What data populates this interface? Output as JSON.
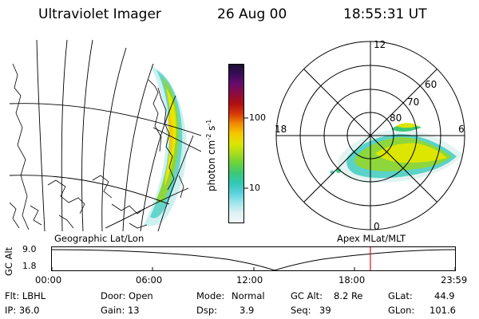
{
  "header": {
    "title": "Ultraviolet Imager",
    "date": "26 Aug 00",
    "time": "18:55:31  UT"
  },
  "colorbar": {
    "label": "photon cm",
    "label_exp1": "-2",
    "label_mid": "s",
    "label_exp2": "-1",
    "ticks": [
      "100",
      "10"
    ],
    "colors": [
      "#1a0f30",
      "#3a0d5a",
      "#6a0b6a",
      "#8e0b3e",
      "#b01010",
      "#d83a0a",
      "#f08c00",
      "#f5c800",
      "#dce600",
      "#a8dc1e",
      "#6ad23c",
      "#3cc878",
      "#32c8b4",
      "#5ad2dc",
      "#9ee6ec",
      "#dcf0f4",
      "#f4f8fa"
    ]
  },
  "geo": {
    "caption": "Geographic Lat/Lon"
  },
  "polar": {
    "caption": "Apex MLat/MLT",
    "mlt_labels": {
      "top": "12",
      "left": "18",
      "right": "6",
      "bottom": "0"
    },
    "lat_labels": [
      "60",
      "70",
      "80"
    ]
  },
  "altstrip": {
    "axis_label": "GC Alt",
    "ymax": "9.0",
    "ymin": "1.8",
    "xticks": [
      "00:00",
      "06:00",
      "12:00",
      "18:00",
      "23:59"
    ],
    "current_time_fraction": 0.79,
    "marker_color": "#e01010"
  },
  "footer": {
    "flt": "Flt: LBHL",
    "ip": "IP: 36.0",
    "door": "Door: Open",
    "gain": "Gain: 13",
    "mode_label": "Mode:",
    "mode_value": "Normal",
    "dsp_label": "Dsp:",
    "dsp_value": "3.9",
    "gcalt_label": "GC Alt:",
    "gcalt_value": "8.2 Re",
    "seq_label": "Seq:",
    "seq_value": "39",
    "glat_label": "GLat:",
    "glat_value": "44.9",
    "glon_label": "GLon:",
    "glon_value": "101.6"
  }
}
